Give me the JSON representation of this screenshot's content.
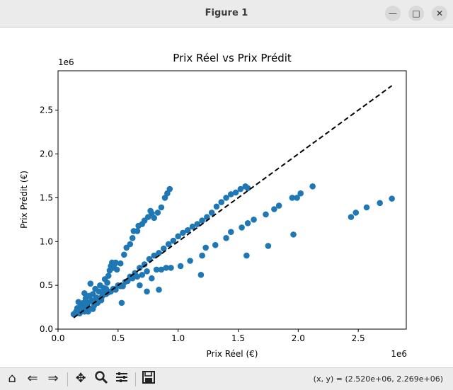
{
  "window": {
    "title": "Figure 1"
  },
  "toolbar": {
    "coords_text": "(x, y) = (2.520e+06, 2.269e+06)"
  },
  "chart_data": {
    "type": "scatter",
    "title": "Prix Réel vs Prix Prédit",
    "xlabel": "Prix Réel (€)",
    "ylabel": "Prix Prédit (€)",
    "x_offset_text": "1e6",
    "y_offset_text": "1e6",
    "xlim": [
      0.0,
      2.9
    ],
    "ylim": [
      0.0,
      2.95
    ],
    "x_ticks": [
      0.0,
      0.5,
      1.0,
      1.5,
      2.0,
      2.5
    ],
    "x_tick_labels": [
      "0.0",
      "0.5",
      "1.0",
      "1.5",
      "2.0",
      "2.5"
    ],
    "y_ticks": [
      0.0,
      0.5,
      1.0,
      1.5,
      2.0,
      2.5
    ],
    "y_tick_labels": [
      "0.0",
      "0.5",
      "1.0",
      "1.5",
      "2.0",
      "2.5"
    ],
    "grid": false,
    "point_color": "#1f77b4",
    "reference_line": {
      "x": [
        0.13,
        2.78
      ],
      "y": [
        0.13,
        2.78
      ],
      "style": "dashed",
      "color": "#000000"
    },
    "points": [
      [
        0.13,
        0.17
      ],
      [
        0.15,
        0.2
      ],
      [
        0.16,
        0.24
      ],
      [
        0.17,
        0.31
      ],
      [
        0.18,
        0.18
      ],
      [
        0.19,
        0.27
      ],
      [
        0.2,
        0.22
      ],
      [
        0.21,
        0.3
      ],
      [
        0.22,
        0.2
      ],
      [
        0.22,
        0.41
      ],
      [
        0.23,
        0.35
      ],
      [
        0.24,
        0.26
      ],
      [
        0.25,
        0.3
      ],
      [
        0.26,
        0.38
      ],
      [
        0.26,
        0.23
      ],
      [
        0.27,
        0.52
      ],
      [
        0.28,
        0.33
      ],
      [
        0.29,
        0.4
      ],
      [
        0.3,
        0.27
      ],
      [
        0.31,
        0.46
      ],
      [
        0.32,
        0.36
      ],
      [
        0.33,
        0.3
      ],
      [
        0.34,
        0.43
      ],
      [
        0.35,
        0.5
      ],
      [
        0.36,
        0.33
      ],
      [
        0.37,
        0.41
      ],
      [
        0.38,
        0.47
      ],
      [
        0.39,
        0.57
      ],
      [
        0.4,
        0.46
      ],
      [
        0.41,
        0.53
      ],
      [
        0.42,
        0.61
      ],
      [
        0.43,
        0.67
      ],
      [
        0.44,
        0.72
      ],
      [
        0.45,
        0.76
      ],
      [
        0.46,
        0.7
      ],
      [
        0.47,
        0.74
      ],
      [
        0.48,
        0.76
      ],
      [
        0.49,
        0.68
      ],
      [
        0.52,
        0.75
      ],
      [
        0.55,
        0.85
      ],
      [
        0.57,
        0.93
      ],
      [
        0.6,
        0.97
      ],
      [
        0.62,
        1.04
      ],
      [
        0.63,
        1.12
      ],
      [
        0.66,
        1.12
      ],
      [
        0.67,
        1.18
      ],
      [
        0.7,
        1.2
      ],
      [
        0.72,
        1.24
      ],
      [
        0.75,
        1.28
      ],
      [
        0.77,
        1.35
      ],
      [
        0.78,
        1.32
      ],
      [
        0.8,
        1.27
      ],
      [
        0.83,
        1.33
      ],
      [
        0.86,
        1.39
      ],
      [
        0.89,
        1.5
      ],
      [
        0.91,
        1.55
      ],
      [
        0.93,
        1.6
      ],
      [
        0.21,
        0.25
      ],
      [
        0.25,
        0.2
      ],
      [
        0.29,
        0.23
      ],
      [
        0.33,
        0.34
      ],
      [
        0.37,
        0.38
      ],
      [
        0.4,
        0.4
      ],
      [
        0.44,
        0.43
      ],
      [
        0.48,
        0.45
      ],
      [
        0.52,
        0.49
      ],
      [
        0.56,
        0.54
      ],
      [
        0.6,
        0.6
      ],
      [
        0.64,
        0.64
      ],
      [
        0.68,
        0.7
      ],
      [
        0.72,
        0.74
      ],
      [
        0.76,
        0.8
      ],
      [
        0.8,
        0.84
      ],
      [
        0.84,
        0.87
      ],
      [
        0.88,
        0.92
      ],
      [
        0.92,
        0.97
      ],
      [
        0.96,
        1.01
      ],
      [
        1.0,
        1.06
      ],
      [
        1.04,
        1.1
      ],
      [
        1.08,
        1.13
      ],
      [
        1.12,
        1.17
      ],
      [
        1.16,
        1.2
      ],
      [
        1.2,
        1.24
      ],
      [
        1.24,
        1.28
      ],
      [
        1.28,
        1.33
      ],
      [
        1.32,
        1.4
      ],
      [
        1.36,
        1.45
      ],
      [
        1.4,
        1.5
      ],
      [
        1.44,
        1.54
      ],
      [
        1.48,
        1.56
      ],
      [
        1.52,
        1.6
      ],
      [
        1.56,
        1.63
      ],
      [
        1.58,
        1.61
      ],
      [
        0.3,
        0.3
      ],
      [
        0.36,
        0.36
      ],
      [
        0.42,
        0.42
      ],
      [
        0.46,
        0.46
      ],
      [
        0.5,
        0.5
      ],
      [
        0.54,
        0.49
      ],
      [
        0.58,
        0.55
      ],
      [
        0.62,
        0.58
      ],
      [
        0.66,
        0.6
      ],
      [
        0.7,
        0.62
      ],
      [
        0.74,
        0.66
      ],
      [
        0.78,
        0.58
      ],
      [
        0.82,
        0.68
      ],
      [
        0.86,
        0.68
      ],
      [
        0.9,
        0.7
      ],
      [
        0.94,
        0.7
      ],
      [
        1.02,
        0.72
      ],
      [
        1.1,
        0.78
      ],
      [
        1.2,
        0.84
      ],
      [
        1.23,
        0.93
      ],
      [
        1.31,
        0.96
      ],
      [
        1.4,
        1.04
      ],
      [
        1.44,
        1.11
      ],
      [
        1.53,
        1.16
      ],
      [
        1.58,
        1.21
      ],
      [
        1.63,
        1.25
      ],
      [
        1.73,
        1.31
      ],
      [
        1.8,
        1.37
      ],
      [
        1.84,
        1.41
      ],
      [
        1.95,
        1.5
      ],
      [
        1.99,
        1.5
      ],
      [
        2.02,
        1.55
      ],
      [
        2.12,
        1.63
      ],
      [
        0.23,
        0.25
      ],
      [
        0.33,
        0.34
      ],
      [
        0.53,
        0.3
      ],
      [
        0.68,
        0.5
      ],
      [
        0.74,
        0.43
      ],
      [
        0.84,
        0.45
      ],
      [
        1.19,
        0.62
      ],
      [
        1.57,
        0.84
      ],
      [
        1.75,
        0.95
      ],
      [
        1.96,
        1.08
      ],
      [
        2.44,
        1.28
      ],
      [
        2.48,
        1.33
      ],
      [
        2.57,
        1.39
      ],
      [
        2.68,
        1.44
      ],
      [
        2.78,
        1.49
      ]
    ]
  }
}
